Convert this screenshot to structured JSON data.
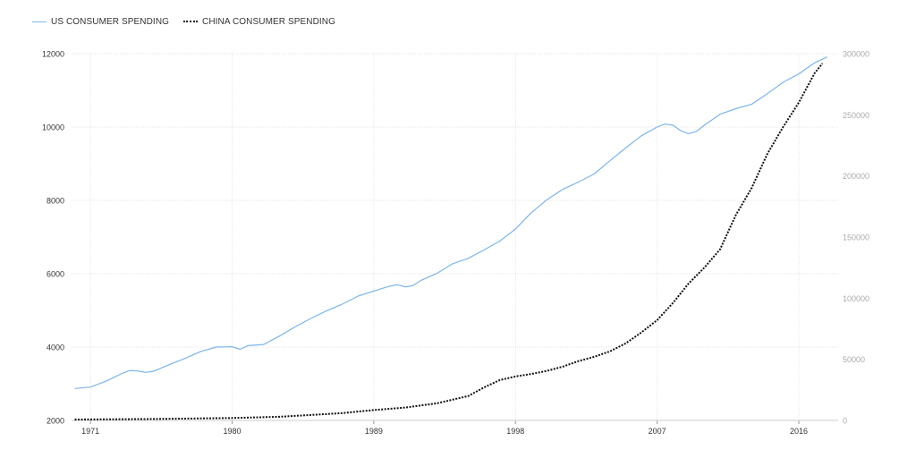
{
  "legend": {
    "us_label": "US CONSUMER SPENDING",
    "china_label": "CHINA CONSUMER SPENDING"
  },
  "chart_data": {
    "type": "line",
    "x_ticks": [
      "1971",
      "1980",
      "1989",
      "1998",
      "2007",
      "2016"
    ],
    "xlim": [
      1969.8,
      2018.5
    ],
    "y_left": {
      "ticks": [
        2000,
        4000,
        6000,
        8000,
        10000,
        12000
      ],
      "ylim": [
        2000,
        12000
      ]
    },
    "y_right": {
      "ticks": [
        0,
        50000,
        100000,
        150000,
        200000,
        250000,
        300000
      ],
      "ylim": [
        0,
        300000
      ]
    },
    "grid": true,
    "legend_position": "top-left",
    "colors": {
      "us": "#7cb5ec",
      "china": "#111111",
      "grid": "#e6e6e6",
      "axis_text_left": "#333333",
      "axis_text_right": "#aaaaaa"
    },
    "series": [
      {
        "name": "US CONSUMER SPENDING",
        "axis": "left",
        "x": [
          1970.0,
          1971.0,
          1972.0,
          1973.0,
          1973.5,
          1974.0,
          1974.5,
          1975.0,
          1976.0,
          1977.0,
          1978.0,
          1979.0,
          1980.0,
          1980.5,
          1981.0,
          1982.0,
          1983.0,
          1984.0,
          1985.0,
          1986.0,
          1987.0,
          1988.0,
          1989.0,
          1990.0,
          1990.5,
          1991.0,
          1991.5,
          1992.0,
          1993.0,
          1994.0,
          1995.0,
          1996.0,
          1997.0,
          1998.0,
          1999.0,
          2000.0,
          2001.0,
          2002.0,
          2003.0,
          2004.0,
          2005.0,
          2006.0,
          2007.0,
          2007.5,
          2008.0,
          2008.5,
          2009.0,
          2009.5,
          2010.0,
          2011.0,
          2012.0,
          2013.0,
          2014.0,
          2015.0,
          2016.0,
          2016.5,
          2017.0,
          2017.8
        ],
        "values": [
          2870,
          2910,
          3070,
          3280,
          3360,
          3350,
          3310,
          3340,
          3520,
          3690,
          3880,
          4000,
          4010,
          3940,
          4040,
          4070,
          4300,
          4550,
          4780,
          4990,
          5170,
          5390,
          5530,
          5660,
          5700,
          5640,
          5680,
          5820,
          6010,
          6270,
          6420,
          6650,
          6890,
          7220,
          7660,
          8020,
          8300,
          8500,
          8720,
          9080,
          9430,
          9760,
          10000,
          10080,
          10050,
          9900,
          9820,
          9880,
          10050,
          10350,
          10500,
          10620,
          10910,
          11220,
          11450,
          11600,
          11750,
          11910
        ]
      },
      {
        "name": "CHINA CONSUMER SPENDING",
        "axis": "right",
        "x": [
          1970.0,
          1975.0,
          1980.0,
          1983.0,
          1985.0,
          1987.0,
          1989.0,
          1991.0,
          1993.0,
          1995.0,
          1996.0,
          1997.0,
          1998.0,
          1999.0,
          2000.0,
          2001.0,
          2002.0,
          2003.0,
          2004.0,
          2005.0,
          2006.0,
          2007.0,
          2008.0,
          2009.0,
          2010.0,
          2011.0,
          2012.0,
          2013.0,
          2014.0,
          2015.0,
          2016.0,
          2016.5,
          2017.0,
          2017.5
        ],
        "values": [
          700,
          1200,
          2000,
          3000,
          4500,
          6000,
          8500,
          10500,
          14000,
          20000,
          27000,
          33000,
          36000,
          38000,
          40500,
          44000,
          48500,
          52000,
          56500,
          63000,
          72000,
          82000,
          96000,
          112000,
          125000,
          140000,
          168000,
          190000,
          218000,
          240000,
          260000,
          272000,
          284000,
          292000
        ]
      }
    ]
  }
}
